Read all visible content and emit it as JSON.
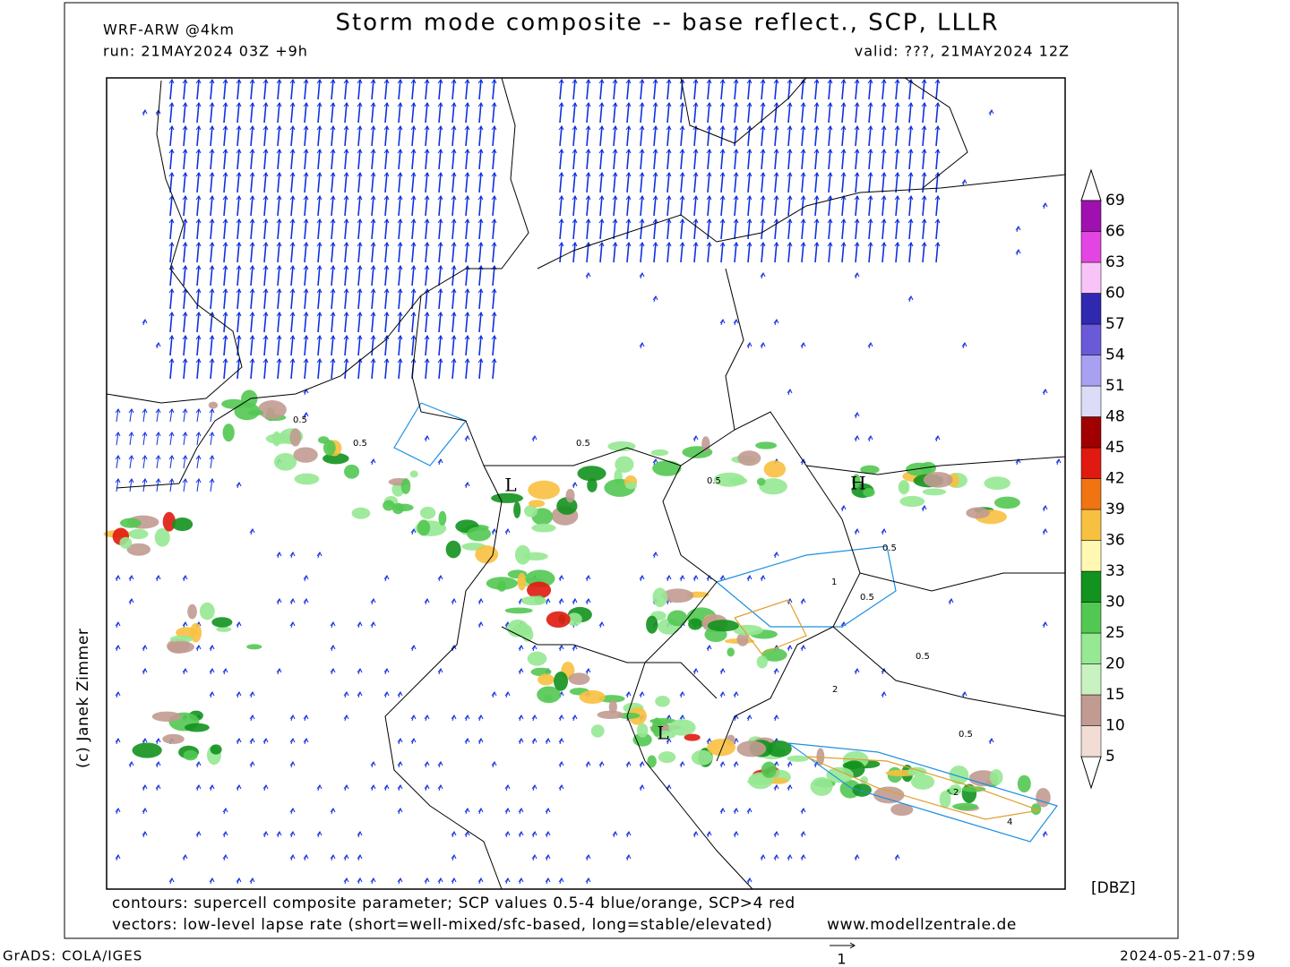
{
  "header": {
    "model": "WRF-ARW @4km",
    "title": "Storm mode composite -- base reflect., SCP, LLLR",
    "run": "run: 21MAY2024 03Z +9h",
    "valid": "valid: ???, 21MAY2024 12Z",
    "copyright": "(c) Janek Zimmer"
  },
  "map": {
    "labels": [
      "L",
      "H",
      "L"
    ],
    "contour_labels": [
      "0.5",
      "0.5",
      "0.5",
      "0.5",
      "0.5",
      "0.5",
      "0.5",
      "0.5",
      "1",
      "2",
      "2",
      "4"
    ]
  },
  "colorbar": {
    "levels": [
      5,
      10,
      15,
      20,
      25,
      30,
      33,
      36,
      39,
      42,
      45,
      48,
      51,
      54,
      57,
      60,
      63,
      66,
      69
    ],
    "colors": [
      "#f2ddd6",
      "#c19b91",
      "#c8f2c0",
      "#96e892",
      "#52c852",
      "#12921e",
      "#fff8b2",
      "#f8c040",
      "#f07412",
      "#e01a10",
      "#a00000",
      "#dcdcf8",
      "#a8a0f0",
      "#6a5ad8",
      "#3028b0",
      "#f8c4f8",
      "#e444e4",
      "#a010b0"
    ],
    "unit": "[DBZ]"
  },
  "footer": {
    "contours": "contours: supercell composite parameter; SCP values 0.5-4 blue/orange, SCP>4 red",
    "vectors": "vectors: low-level lapse rate (short=well-mixed/sfc-based, long=stable/elevated)",
    "website": "www.modellzentrale.de",
    "software": "GrADS: COLA/IGES",
    "vector_scale": "1",
    "timestamp": "2024-05-21-07:59"
  }
}
